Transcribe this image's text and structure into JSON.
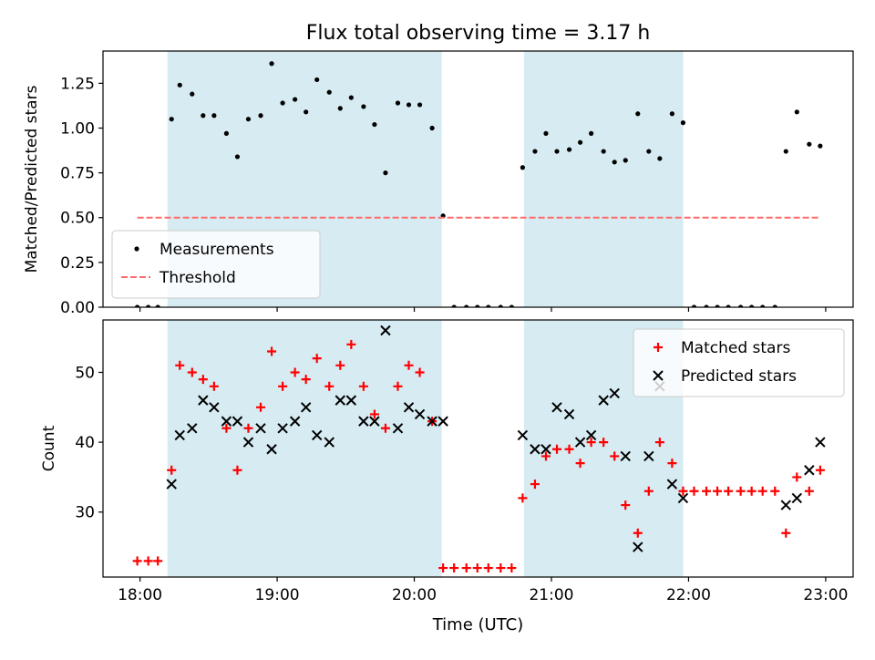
{
  "chart_data": {
    "type": "scatter",
    "title": "Flux total observing time = 3.17 h",
    "xlabel": "Time (UTC)",
    "x_unit": "hours UTC",
    "xlim": [
      17.73,
      23.2
    ],
    "x_tick_values": [
      18,
      19,
      20,
      21,
      22,
      23
    ],
    "x_tick_labels": [
      "18:00",
      "19:00",
      "20:00",
      "21:00",
      "22:00",
      "23:00"
    ],
    "shaded_intervals": [
      [
        18.2,
        20.2
      ],
      [
        20.8,
        21.96
      ]
    ],
    "shade_color": "#add8e6",
    "grid": false,
    "top_panel": {
      "ylabel": "Matched/Predicted stars",
      "ylim": [
        0,
        1.43
      ],
      "y_tick_values": [
        0,
        0.25,
        0.5,
        0.75,
        1.0,
        1.25
      ],
      "y_tick_labels": [
        "0.00",
        "0.25",
        "0.50",
        "0.75",
        "1.00",
        "1.25"
      ],
      "legend_location": "lower left",
      "series": [
        {
          "name": "Measurements",
          "marker": "dot",
          "color": "#000000",
          "points": [
            [
              17.98,
              0.0
            ],
            [
              18.06,
              0.0
            ],
            [
              18.13,
              0.0
            ],
            [
              18.23,
              1.05
            ],
            [
              18.29,
              1.24
            ],
            [
              18.38,
              1.19
            ],
            [
              18.46,
              1.07
            ],
            [
              18.54,
              1.07
            ],
            [
              18.63,
              0.97
            ],
            [
              18.71,
              0.84
            ],
            [
              18.79,
              1.05
            ],
            [
              18.88,
              1.07
            ],
            [
              18.96,
              1.36
            ],
            [
              19.04,
              1.14
            ],
            [
              19.13,
              1.16
            ],
            [
              19.21,
              1.09
            ],
            [
              19.29,
              1.27
            ],
            [
              19.38,
              1.2
            ],
            [
              19.46,
              1.11
            ],
            [
              19.54,
              1.17
            ],
            [
              19.63,
              1.12
            ],
            [
              19.71,
              1.02
            ],
            [
              19.79,
              0.75
            ],
            [
              19.88,
              1.14
            ],
            [
              19.96,
              1.13
            ],
            [
              20.04,
              1.13
            ],
            [
              20.13,
              1.0
            ],
            [
              20.21,
              0.51
            ],
            [
              20.29,
              0.0
            ],
            [
              20.38,
              0.0
            ],
            [
              20.46,
              0.0
            ],
            [
              20.54,
              0.0
            ],
            [
              20.63,
              0.0
            ],
            [
              20.71,
              0.0
            ],
            [
              20.79,
              0.78
            ],
            [
              20.88,
              0.87
            ],
            [
              20.96,
              0.97
            ],
            [
              21.04,
              0.87
            ],
            [
              21.13,
              0.88
            ],
            [
              21.21,
              0.92
            ],
            [
              21.29,
              0.97
            ],
            [
              21.38,
              0.87
            ],
            [
              21.46,
              0.81
            ],
            [
              21.54,
              0.82
            ],
            [
              21.63,
              1.08
            ],
            [
              21.71,
              0.87
            ],
            [
              21.79,
              0.83
            ],
            [
              21.88,
              1.08
            ],
            [
              21.96,
              1.03
            ],
            [
              22.04,
              0.0
            ],
            [
              22.13,
              0.0
            ],
            [
              22.21,
              0.0
            ],
            [
              22.29,
              0.0
            ],
            [
              22.38,
              0.0
            ],
            [
              22.46,
              0.0
            ],
            [
              22.54,
              0.0
            ],
            [
              22.63,
              0.0
            ],
            [
              22.71,
              0.87
            ],
            [
              22.79,
              1.09
            ],
            [
              22.88,
              0.91
            ],
            [
              22.96,
              0.9
            ]
          ]
        },
        {
          "name": "Threshold",
          "line": "dashed",
          "color": "#ff6b6b",
          "points": [
            [
              17.98,
              0.5
            ],
            [
              22.96,
              0.5
            ]
          ]
        }
      ]
    },
    "bottom_panel": {
      "ylabel": "Count",
      "ylim": [
        20.7,
        57.5
      ],
      "y_tick_values": [
        30,
        40,
        50
      ],
      "y_tick_labels": [
        "30",
        "40",
        "50"
      ],
      "legend_location": "upper right",
      "series": [
        {
          "name": "Matched stars",
          "marker": "plus",
          "color": "#ff0000",
          "points": [
            [
              17.98,
              23
            ],
            [
              18.06,
              23
            ],
            [
              18.13,
              23
            ],
            [
              18.23,
              36
            ],
            [
              18.29,
              51
            ],
            [
              18.38,
              50
            ],
            [
              18.46,
              49
            ],
            [
              18.54,
              48
            ],
            [
              18.63,
              42
            ],
            [
              18.71,
              36
            ],
            [
              18.79,
              42
            ],
            [
              18.88,
              45
            ],
            [
              18.96,
              53
            ],
            [
              19.04,
              48
            ],
            [
              19.13,
              50
            ],
            [
              19.21,
              49
            ],
            [
              19.29,
              52
            ],
            [
              19.38,
              48
            ],
            [
              19.46,
              51
            ],
            [
              19.54,
              54
            ],
            [
              19.63,
              48
            ],
            [
              19.71,
              44
            ],
            [
              19.79,
              42
            ],
            [
              19.88,
              48
            ],
            [
              19.96,
              51
            ],
            [
              20.04,
              50
            ],
            [
              20.13,
              43
            ],
            [
              20.21,
              22
            ],
            [
              20.29,
              22
            ],
            [
              20.38,
              22
            ],
            [
              20.46,
              22
            ],
            [
              20.54,
              22
            ],
            [
              20.63,
              22
            ],
            [
              20.71,
              22
            ],
            [
              20.79,
              32
            ],
            [
              20.88,
              34
            ],
            [
              20.96,
              38
            ],
            [
              21.04,
              39
            ],
            [
              21.13,
              39
            ],
            [
              21.21,
              37
            ],
            [
              21.29,
              40
            ],
            [
              21.38,
              40
            ],
            [
              21.46,
              38
            ],
            [
              21.54,
              31
            ],
            [
              21.63,
              27
            ],
            [
              21.71,
              33
            ],
            [
              21.79,
              40
            ],
            [
              21.88,
              37
            ],
            [
              21.96,
              33
            ],
            [
              22.04,
              33
            ],
            [
              22.13,
              33
            ],
            [
              22.21,
              33
            ],
            [
              22.29,
              33
            ],
            [
              22.38,
              33
            ],
            [
              22.46,
              33
            ],
            [
              22.54,
              33
            ],
            [
              22.63,
              33
            ],
            [
              22.71,
              27
            ],
            [
              22.79,
              35
            ],
            [
              22.88,
              33
            ],
            [
              22.96,
              36
            ]
          ]
        },
        {
          "name": "Predicted stars",
          "marker": "x",
          "color": "#000000",
          "points": [
            [
              18.23,
              34
            ],
            [
              18.29,
              41
            ],
            [
              18.38,
              42
            ],
            [
              18.46,
              46
            ],
            [
              18.54,
              45
            ],
            [
              18.63,
              43
            ],
            [
              18.71,
              43
            ],
            [
              18.79,
              40
            ],
            [
              18.88,
              42
            ],
            [
              18.96,
              39
            ],
            [
              19.04,
              42
            ],
            [
              19.13,
              43
            ],
            [
              19.21,
              45
            ],
            [
              19.29,
              41
            ],
            [
              19.38,
              40
            ],
            [
              19.46,
              46
            ],
            [
              19.54,
              46
            ],
            [
              19.63,
              43
            ],
            [
              19.71,
              43
            ],
            [
              19.79,
              56
            ],
            [
              19.88,
              42
            ],
            [
              19.96,
              45
            ],
            [
              20.04,
              44
            ],
            [
              20.13,
              43
            ],
            [
              20.21,
              43
            ],
            [
              20.79,
              41
            ],
            [
              20.88,
              39
            ],
            [
              20.96,
              39
            ],
            [
              21.04,
              45
            ],
            [
              21.13,
              44
            ],
            [
              21.21,
              40
            ],
            [
              21.29,
              41
            ],
            [
              21.38,
              46
            ],
            [
              21.46,
              47
            ],
            [
              21.54,
              38
            ],
            [
              21.63,
              25
            ],
            [
              21.71,
              38
            ],
            [
              21.79,
              48
            ],
            [
              21.88,
              34
            ],
            [
              21.96,
              32
            ],
            [
              22.71,
              31
            ],
            [
              22.79,
              32
            ],
            [
              22.88,
              36
            ],
            [
              22.96,
              40
            ]
          ]
        }
      ]
    }
  }
}
